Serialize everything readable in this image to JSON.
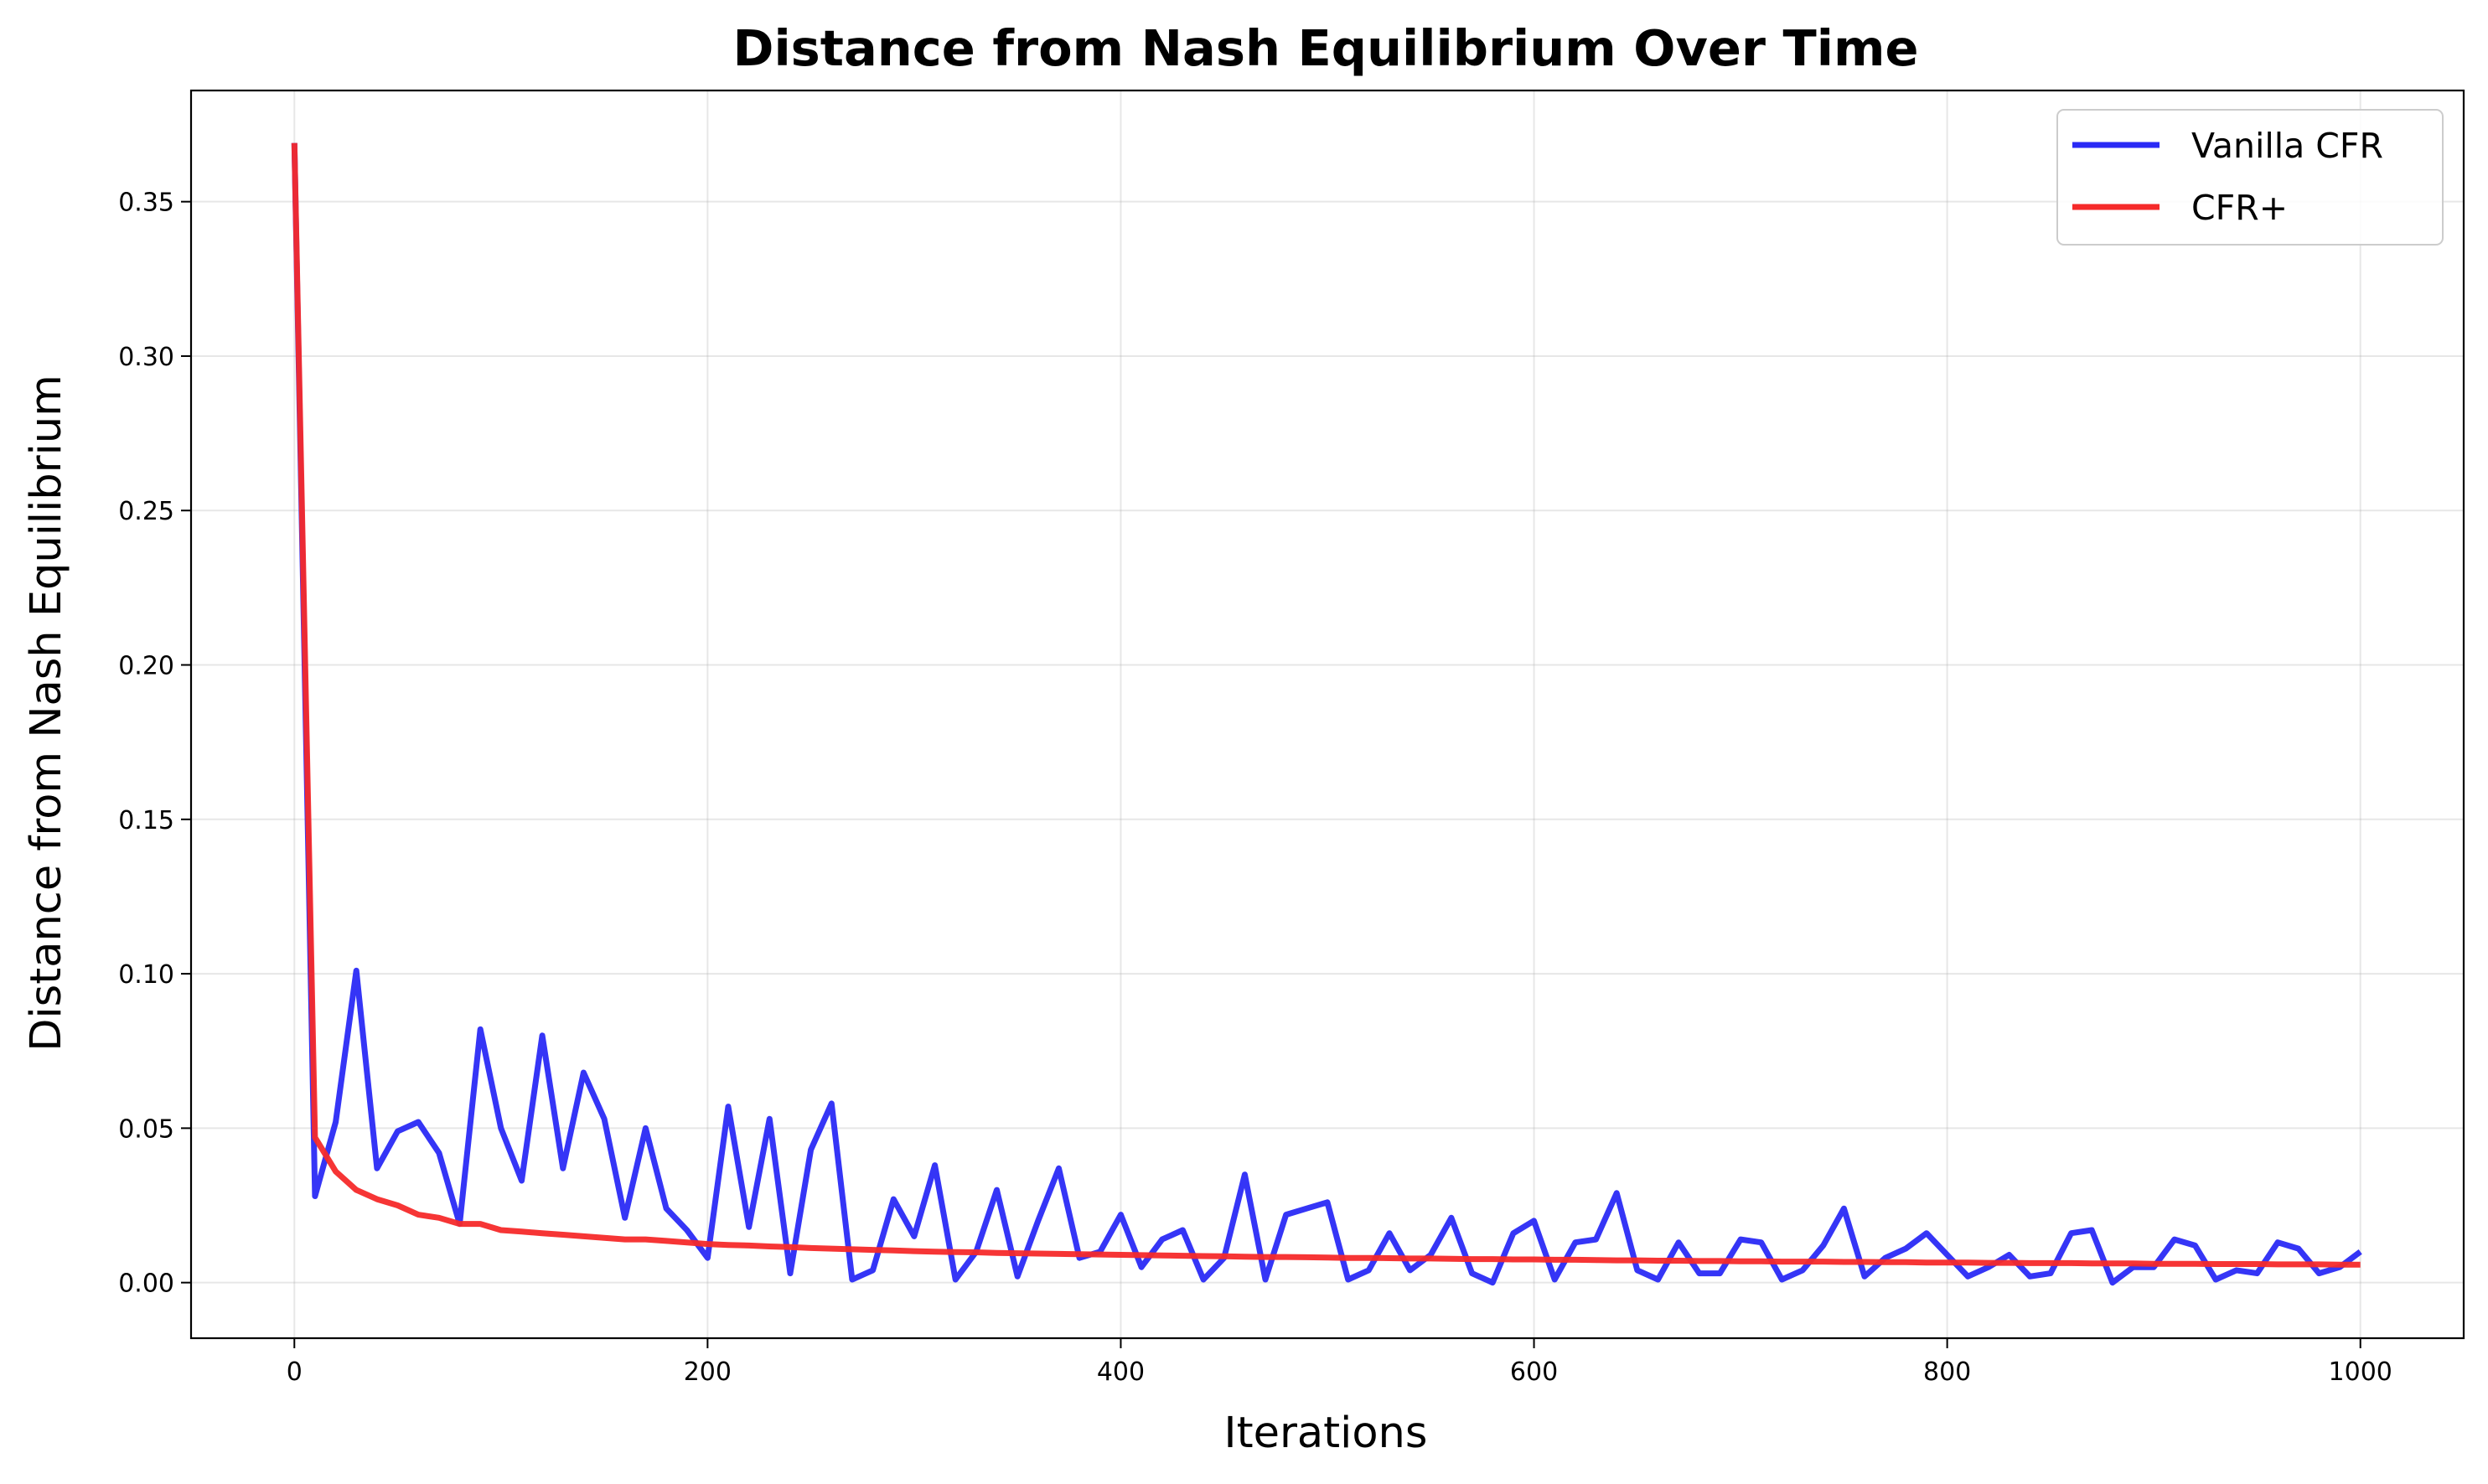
{
  "chart_data": {
    "type": "line",
    "title": "Distance from Nash Equilibrium Over Time",
    "xlabel": "Iterations",
    "ylabel": "Distance from Nash Equilibrium",
    "xlim": [
      -50,
      1050
    ],
    "ylim": [
      -0.018,
      0.386
    ],
    "xticks": [
      0,
      200,
      400,
      600,
      800,
      1000
    ],
    "yticks": [
      0.0,
      0.05,
      0.1,
      0.15,
      0.2,
      0.25,
      0.3,
      0.35
    ],
    "xtick_labels": [
      "0",
      "200",
      "400",
      "600",
      "800",
      "1000"
    ],
    "ytick_labels": [
      "0.00",
      "0.05",
      "0.10",
      "0.15",
      "0.20",
      "0.25",
      "0.30",
      "0.35"
    ],
    "grid": true,
    "legend_position": "top-right",
    "x": [
      0,
      10,
      20,
      30,
      40,
      50,
      60,
      70,
      80,
      90,
      100,
      110,
      120,
      130,
      140,
      150,
      160,
      170,
      180,
      190,
      200,
      210,
      220,
      230,
      240,
      250,
      260,
      270,
      280,
      290,
      300,
      310,
      320,
      330,
      340,
      350,
      360,
      370,
      380,
      390,
      400,
      410,
      420,
      430,
      440,
      450,
      460,
      470,
      480,
      490,
      500,
      510,
      520,
      530,
      540,
      550,
      560,
      570,
      580,
      590,
      600,
      610,
      620,
      630,
      640,
      650,
      660,
      670,
      680,
      690,
      700,
      710,
      720,
      730,
      740,
      750,
      760,
      770,
      780,
      790,
      800,
      810,
      820,
      830,
      840,
      850,
      860,
      870,
      880,
      890,
      900,
      910,
      920,
      930,
      940,
      950,
      960,
      970,
      980,
      990,
      1000
    ],
    "series": [
      {
        "name": "Vanilla CFR",
        "color": "#2a2af5",
        "values": [
          0.369,
          0.028,
          0.052,
          0.101,
          0.037,
          0.049,
          0.052,
          0.042,
          0.019,
          0.082,
          0.05,
          0.033,
          0.08,
          0.037,
          0.068,
          0.053,
          0.021,
          0.05,
          0.024,
          0.017,
          0.008,
          0.057,
          0.018,
          0.053,
          0.003,
          0.043,
          0.058,
          0.001,
          0.004,
          0.027,
          0.015,
          0.038,
          0.001,
          0.01,
          0.03,
          0.002,
          0.02,
          0.037,
          0.008,
          0.01,
          0.022,
          0.005,
          0.014,
          0.017,
          0.001,
          0.008,
          0.035,
          0.001,
          0.022,
          0.024,
          0.026,
          0.001,
          0.004,
          0.016,
          0.004,
          0.009,
          0.021,
          0.003,
          0.0,
          0.016,
          0.02,
          0.001,
          0.013,
          0.014,
          0.029,
          0.004,
          0.001,
          0.013,
          0.003,
          0.003,
          0.014,
          0.013,
          0.001,
          0.004,
          0.012,
          0.024,
          0.002,
          0.008,
          0.011,
          0.016,
          0.009,
          0.002,
          0.005,
          0.009,
          0.002,
          0.003,
          0.016,
          0.017,
          0.0,
          0.005,
          0.005,
          0.014,
          0.012,
          0.001,
          0.004,
          0.003,
          0.013,
          0.011,
          0.003,
          0.005,
          0.01
        ]
      },
      {
        "name": "CFR+",
        "color": "#f52a2a",
        "values": [
          0.369,
          0.047,
          0.036,
          0.03,
          0.027,
          0.025,
          0.022,
          0.021,
          0.019,
          0.019,
          0.017,
          0.0165,
          0.016,
          0.0155,
          0.015,
          0.0145,
          0.014,
          0.014,
          0.0135,
          0.013,
          0.0125,
          0.0122,
          0.012,
          0.0117,
          0.0115,
          0.0112,
          0.011,
          0.0108,
          0.0106,
          0.0104,
          0.0102,
          0.01,
          0.0099,
          0.0098,
          0.0096,
          0.0095,
          0.0094,
          0.0093,
          0.0092,
          0.0091,
          0.009,
          0.0089,
          0.0088,
          0.0087,
          0.0086,
          0.0085,
          0.0084,
          0.0083,
          0.0083,
          0.0082,
          0.0081,
          0.008,
          0.008,
          0.0079,
          0.0078,
          0.0078,
          0.0077,
          0.0076,
          0.0076,
          0.0075,
          0.0075,
          0.0074,
          0.0074,
          0.0073,
          0.0072,
          0.0072,
          0.0071,
          0.0071,
          0.007,
          0.007,
          0.0069,
          0.0069,
          0.0068,
          0.0068,
          0.0068,
          0.0067,
          0.0067,
          0.0066,
          0.0066,
          0.0065,
          0.0065,
          0.0065,
          0.0064,
          0.0064,
          0.0063,
          0.0063,
          0.0063,
          0.0062,
          0.0062,
          0.0062,
          0.0061,
          0.0061,
          0.0061,
          0.006,
          0.006,
          0.006,
          0.0059,
          0.0059,
          0.0059,
          0.0058,
          0.0058
        ]
      }
    ]
  }
}
